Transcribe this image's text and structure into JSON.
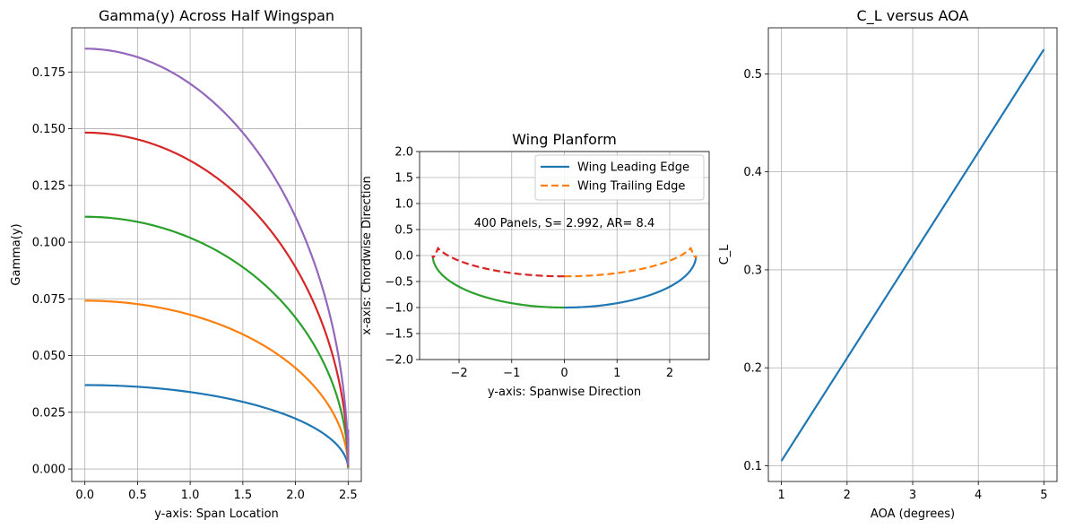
{
  "chart_data": [
    {
      "type": "line",
      "title": "Gamma(y) Across Half Wingspan",
      "xlabel": "y-axis: Span Location",
      "ylabel": "Gamma(y)",
      "xlim": [
        -0.125,
        2.625
      ],
      "ylim": [
        -0.0055,
        0.1945
      ],
      "xticks": [
        "0.0",
        "0.5",
        "1.0",
        "1.5",
        "2.0",
        "2.5"
      ],
      "yticks": [
        "0.000",
        "0.025",
        "0.050",
        "0.075",
        "0.100",
        "0.125",
        "0.150",
        "0.175"
      ],
      "grid": true,
      "curve_shape": "elliptical: gamma0 * sqrt(1 - (y / 2.5)^2)",
      "semi_span": 2.5,
      "series": [
        {
          "gamma0": 0.037,
          "end_value": 0.0035,
          "color": "#1f77b4"
        },
        {
          "gamma0": 0.0742,
          "end_value": 0.007,
          "color": "#ff7f0e"
        },
        {
          "gamma0": 0.1112,
          "end_value": 0.0105,
          "color": "#2ca02c"
        },
        {
          "gamma0": 0.1483,
          "end_value": 0.014,
          "color": "#d62728"
        },
        {
          "gamma0": 0.1853,
          "end_value": 0.0175,
          "color": "#9467bd"
        }
      ]
    },
    {
      "type": "line",
      "title": "Wing Planform",
      "xlabel": "y-axis: Spanwise Direction",
      "ylabel": "x-axis: Chordwise Direction",
      "xlim": [
        -2.75,
        2.75
      ],
      "ylim": [
        -2.0,
        2.0
      ],
      "xticks": [
        "−2",
        "−1",
        "0",
        "1",
        "2"
      ],
      "yticks": [
        "−2.0",
        "−1.5",
        "−1.0",
        "−0.5",
        "0.0",
        "0.5",
        "1.0",
        "1.5",
        "2.0"
      ],
      "grid": true,
      "annotation": "400 Panels, S= 2.992, AR= 8.4",
      "legend_position": "top-right",
      "series": [
        {
          "name": "Wing Leading Edge",
          "style": "solid",
          "color": "#1f77b4",
          "legend": true,
          "x_range": [
            0,
            2.5
          ],
          "y_at_root": -1.0,
          "y_at_tip": 0.0
        },
        {
          "name": "Wing Trailing Edge",
          "style": "dashed",
          "color": "#ff7f0e",
          "legend": true,
          "x_range": [
            0,
            2.5
          ],
          "y_at_root": -0.4,
          "y_max": 0.35
        },
        {
          "style": "solid",
          "color": "#2ca02c",
          "legend": false,
          "x_range": [
            -2.5,
            0
          ],
          "y_at_root": -1.0,
          "y_at_tip": 0.0
        },
        {
          "style": "dashed",
          "color": "#d62728",
          "legend": false,
          "x_range": [
            -2.5,
            0
          ],
          "y_at_root": -0.4,
          "y_max": 0.35
        }
      ]
    },
    {
      "type": "line",
      "title": "C_L versus AOA",
      "xlabel": "AOA (degrees)",
      "ylabel": "C_L",
      "xlim": [
        0.8,
        5.2
      ],
      "ylim": [
        0.084,
        0.547
      ],
      "xticks": [
        "1",
        "2",
        "3",
        "4",
        "5"
      ],
      "yticks": [
        "0.1",
        "0.2",
        "0.3",
        "0.4",
        "0.5"
      ],
      "grid": true,
      "series": [
        {
          "x": [
            1,
            2,
            3,
            4,
            5
          ],
          "y": [
            0.105,
            0.21,
            0.315,
            0.42,
            0.525
          ],
          "color": "#1f77b4"
        }
      ]
    }
  ]
}
